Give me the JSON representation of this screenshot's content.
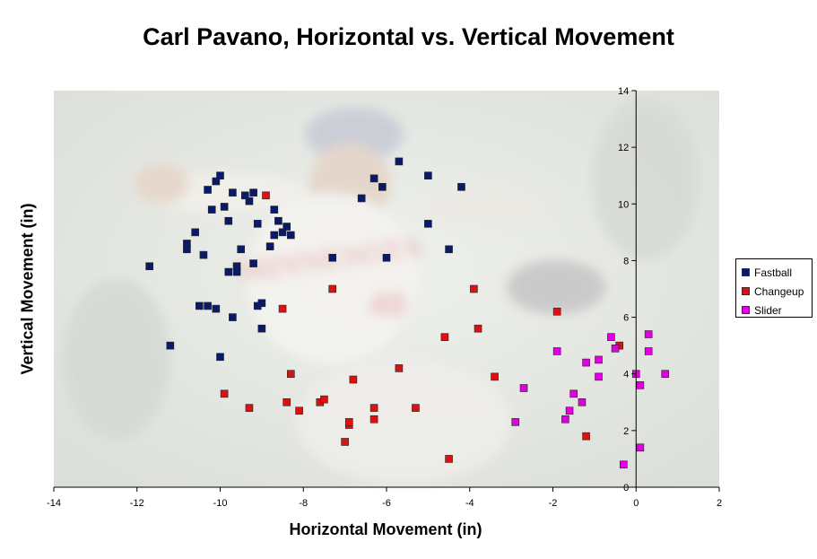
{
  "chart_data": {
    "type": "scatter",
    "title": "Carl Pavano, Horizontal vs. Vertical Movement",
    "xlabel": "Horizontal Movement (in)",
    "ylabel": "Vertical Movement (in)",
    "xlim": [
      -14,
      2
    ],
    "ylim": [
      0,
      14
    ],
    "x_ticks": [
      -14,
      -12,
      -10,
      -8,
      -6,
      -4,
      -2,
      0,
      2
    ],
    "y_ticks": [
      0,
      2,
      4,
      6,
      8,
      10,
      12,
      14
    ],
    "y_axis_crosses_at_x": 0,
    "grid": false,
    "legend_position": "right",
    "background": "faded photo of pitcher in Minnesota uniform",
    "series": [
      {
        "name": "Fastball",
        "color": "#0a1a6b",
        "points": [
          [
            -11.7,
            7.8
          ],
          [
            -11.2,
            5.0
          ],
          [
            -10.8,
            8.6
          ],
          [
            -10.8,
            8.4
          ],
          [
            -10.6,
            9.0
          ],
          [
            -10.4,
            8.2
          ],
          [
            -10.5,
            6.4
          ],
          [
            -10.3,
            6.4
          ],
          [
            -10.3,
            10.5
          ],
          [
            -10.2,
            9.8
          ],
          [
            -10.1,
            10.8
          ],
          [
            -10.1,
            6.3
          ],
          [
            -10.0,
            11.0
          ],
          [
            -10.0,
            4.6
          ],
          [
            -9.9,
            9.9
          ],
          [
            -9.8,
            7.6
          ],
          [
            -9.8,
            9.4
          ],
          [
            -9.7,
            10.4
          ],
          [
            -9.7,
            6.0
          ],
          [
            -9.6,
            7.8
          ],
          [
            -9.6,
            7.6
          ],
          [
            -9.5,
            8.4
          ],
          [
            -9.4,
            10.3
          ],
          [
            -9.3,
            10.1
          ],
          [
            -9.2,
            10.4
          ],
          [
            -9.2,
            7.9
          ],
          [
            -9.1,
            6.4
          ],
          [
            -9.1,
            9.3
          ],
          [
            -9.0,
            6.5
          ],
          [
            -9.0,
            5.6
          ],
          [
            -8.8,
            8.5
          ],
          [
            -8.7,
            9.8
          ],
          [
            -8.7,
            8.9
          ],
          [
            -8.6,
            9.4
          ],
          [
            -8.5,
            9.0
          ],
          [
            -8.4,
            9.2
          ],
          [
            -8.3,
            8.9
          ],
          [
            -7.3,
            8.1
          ],
          [
            -6.6,
            10.2
          ],
          [
            -6.3,
            10.9
          ],
          [
            -6.1,
            10.6
          ],
          [
            -6.0,
            8.1
          ],
          [
            -5.7,
            11.5
          ],
          [
            -5.0,
            11.0
          ],
          [
            -5.0,
            9.3
          ],
          [
            -4.5,
            8.4
          ],
          [
            -4.2,
            10.6
          ]
        ]
      },
      {
        "name": "Changeup",
        "color": "#dd1111",
        "points": [
          [
            -9.9,
            3.3
          ],
          [
            -9.3,
            2.8
          ],
          [
            -8.9,
            10.3
          ],
          [
            -8.5,
            6.3
          ],
          [
            -8.4,
            3.0
          ],
          [
            -8.3,
            4.0
          ],
          [
            -8.1,
            2.7
          ],
          [
            -7.6,
            3.0
          ],
          [
            -7.5,
            3.1
          ],
          [
            -7.3,
            7.0
          ],
          [
            -6.9,
            2.2
          ],
          [
            -6.9,
            2.3
          ],
          [
            -7.0,
            1.6
          ],
          [
            -6.8,
            3.8
          ],
          [
            -6.3,
            2.4
          ],
          [
            -6.3,
            2.8
          ],
          [
            -5.7,
            4.2
          ],
          [
            -5.3,
            2.8
          ],
          [
            -4.6,
            5.3
          ],
          [
            -4.5,
            1.0
          ],
          [
            -3.9,
            7.0
          ],
          [
            -3.8,
            5.6
          ],
          [
            -3.4,
            3.9
          ],
          [
            -1.9,
            6.2
          ],
          [
            -1.2,
            1.8
          ],
          [
            -0.4,
            5.0
          ]
        ]
      },
      {
        "name": "Slider",
        "color": "#e100e1",
        "points": [
          [
            -2.9,
            2.3
          ],
          [
            -2.7,
            3.5
          ],
          [
            -1.9,
            4.8
          ],
          [
            -1.7,
            2.4
          ],
          [
            -1.6,
            2.7
          ],
          [
            -1.5,
            3.3
          ],
          [
            -1.3,
            3.0
          ],
          [
            -1.2,
            4.4
          ],
          [
            -0.9,
            4.5
          ],
          [
            -0.9,
            3.9
          ],
          [
            -0.6,
            5.3
          ],
          [
            -0.5,
            4.9
          ],
          [
            -0.3,
            0.8
          ],
          [
            0.0,
            4.0
          ],
          [
            0.1,
            3.6
          ],
          [
            0.1,
            1.4
          ],
          [
            0.3,
            5.4
          ],
          [
            0.3,
            4.8
          ],
          [
            0.7,
            4.0
          ]
        ]
      }
    ]
  }
}
